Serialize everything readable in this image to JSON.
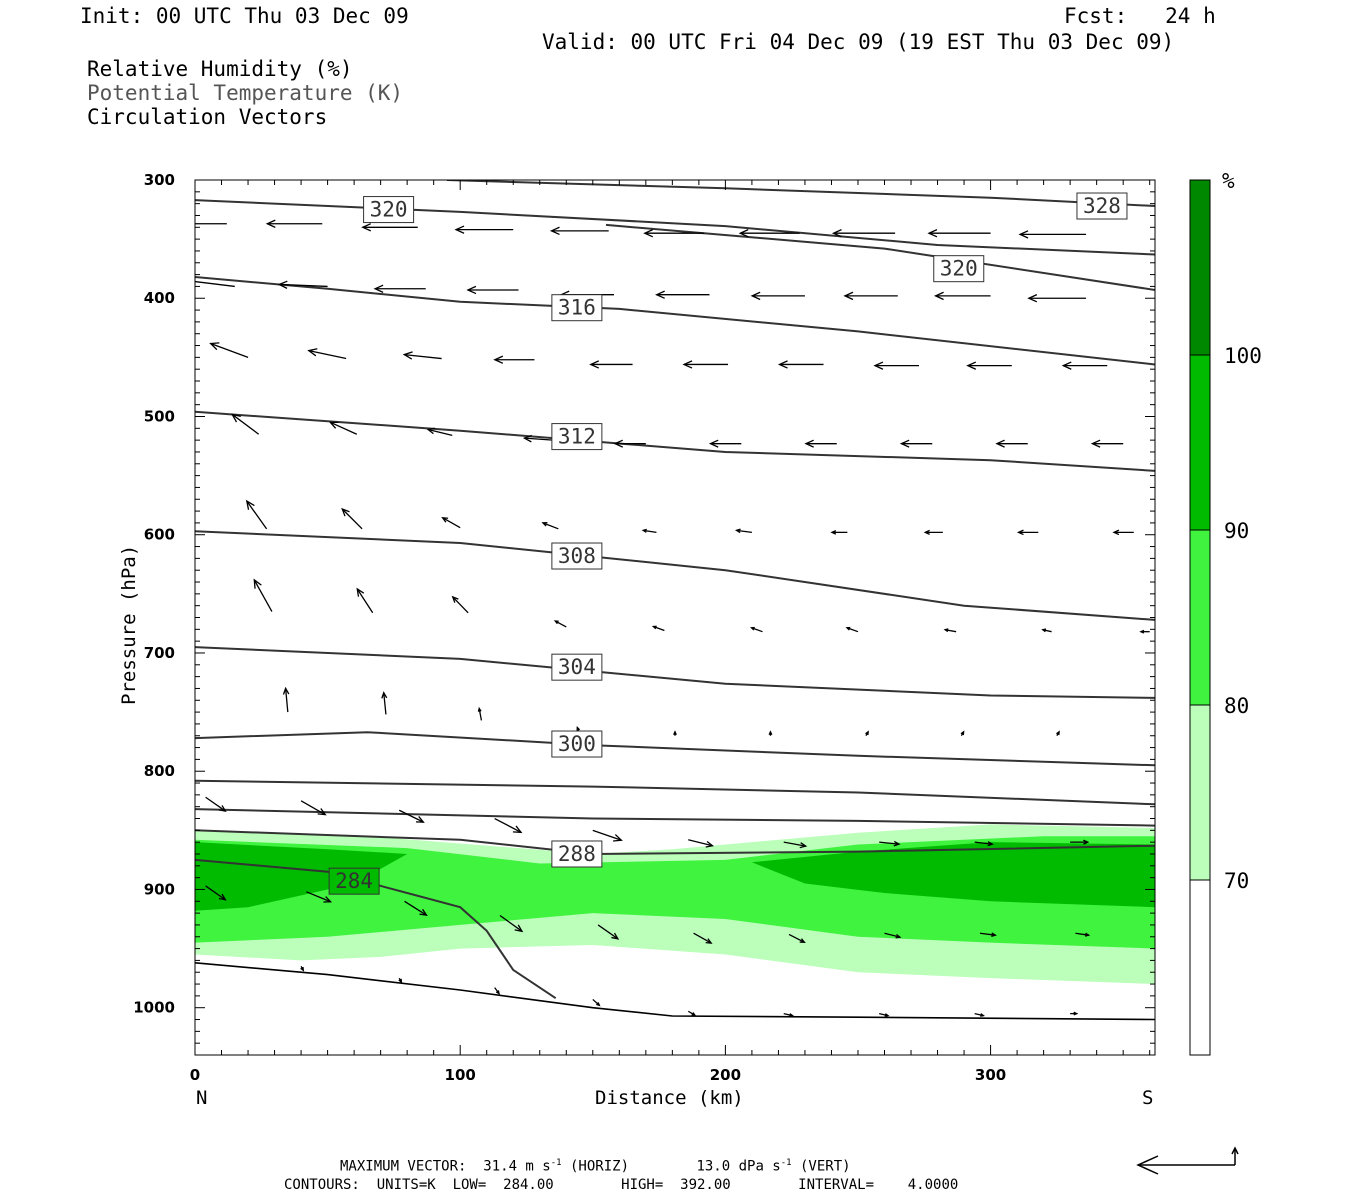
{
  "header": {
    "init": "Init: 00 UTC Thu 03 Dec 09",
    "fcst": "Fcst:   24 h",
    "valid": "Valid: 00 UTC Fri 04 Dec 09 (19 EST Thu 03 Dec 09)"
  },
  "fields": {
    "rh": "Relative Humidity (%)",
    "theta": "Potential Temperature (K)",
    "vectors": "Circulation Vectors"
  },
  "footer": {
    "max_vector_prefix": "MAXIMUM VECTOR:  31.4 m s",
    "max_vector_horiz": " (HORIZ)",
    "max_vector_vert_prefix": "13.0 dPa s",
    "max_vector_vert": " (VERT)",
    "exponent": "-1",
    "contours": "CONTOURS:  UNITS=K  LOW=  284.00        HIGH=  392.00        INTERVAL=    4.0000"
  },
  "colors": {
    "rh70": "#bbffbb",
    "rh80": "#3ff33f",
    "rh90": "#00bb00",
    "rh100": "#008800",
    "contour": "#333333",
    "vector": "#000000"
  },
  "chart_data": {
    "type": "cross-section",
    "xlabel": "Distance (km)",
    "ylabel": "Pressure (hPa)",
    "xlim": [
      0,
      362
    ],
    "ylim": [
      1040,
      300
    ],
    "x_ticks": [
      0,
      100,
      200,
      300
    ],
    "y_ticks": [
      300,
      400,
      500,
      600,
      700,
      800,
      900,
      1000
    ],
    "x_end_labels": {
      "left": "N",
      "right": "S"
    },
    "colorbar": {
      "unit": "%",
      "levels": [
        70,
        80,
        90,
        100
      ],
      "colors": [
        "#ffffff",
        "#bbffbb",
        "#3ff33f",
        "#00bb00",
        "#008800"
      ]
    },
    "rh_regions": [
      {
        "level": 70,
        "upper": [
          [
            0,
            850
          ],
          [
            60,
            854
          ],
          [
            150,
            870
          ],
          [
            180,
            866
          ],
          [
            250,
            852
          ],
          [
            300,
            845
          ],
          [
            362,
            848
          ]
        ],
        "lower": [
          [
            362,
            980
          ],
          [
            300,
            975
          ],
          [
            250,
            970
          ],
          [
            200,
            955
          ],
          [
            150,
            947
          ],
          [
            100,
            950
          ],
          [
            70,
            957
          ],
          [
            40,
            960
          ],
          [
            0,
            955
          ]
        ]
      },
      {
        "level": 80,
        "upper": [
          [
            0,
            858
          ],
          [
            80,
            865
          ],
          [
            130,
            878
          ],
          [
            200,
            875
          ],
          [
            250,
            862
          ],
          [
            320,
            855
          ],
          [
            362,
            855
          ]
        ],
        "lower": [
          [
            362,
            950
          ],
          [
            300,
            945
          ],
          [
            250,
            940
          ],
          [
            200,
            925
          ],
          [
            150,
            920
          ],
          [
            100,
            930
          ],
          [
            50,
            940
          ],
          [
            0,
            945
          ]
        ]
      },
      {
        "level": 90,
        "upper": [
          [
            0,
            860
          ],
          [
            50,
            866
          ],
          [
            80,
            870
          ],
          [
            60,
            895
          ],
          [
            40,
            905
          ],
          [
            20,
            915
          ],
          [
            0,
            918
          ]
        ],
        "lower": null
      },
      {
        "level": 90,
        "upper": [
          [
            210,
            877
          ],
          [
            250,
            868
          ],
          [
            300,
            860
          ],
          [
            362,
            862
          ]
        ],
        "lower": [
          [
            362,
            915
          ],
          [
            300,
            910
          ],
          [
            260,
            903
          ],
          [
            230,
            895
          ]
        ]
      }
    ],
    "theta_contours": [
      {
        "value": 328,
        "points": [
          [
            95,
            300
          ],
          [
            200,
            307
          ],
          [
            300,
            315
          ],
          [
            362,
            322
          ]
        ],
        "label": {
          "x": 342,
          "p": 322
        }
      },
      {
        "value": 320,
        "points": [
          [
            0,
            317
          ],
          [
            100,
            327
          ],
          [
            200,
            339
          ],
          [
            280,
            355
          ],
          [
            362,
            363
          ]
        ],
        "label": {
          "x": 73,
          "p": 325
        }
      },
      {
        "value": 320,
        "points": [
          [
            155,
            338
          ],
          [
            260,
            358
          ],
          [
            362,
            393
          ]
        ],
        "label": {
          "x": 288,
          "p": 375
        }
      },
      {
        "value": 316,
        "points": [
          [
            0,
            382
          ],
          [
            50,
            392
          ],
          [
            100,
            403
          ],
          [
            160,
            409
          ],
          [
            250,
            428
          ],
          [
            362,
            456
          ]
        ],
        "label": {
          "x": 144,
          "p": 408
        }
      },
      {
        "value": 312,
        "points": [
          [
            0,
            496
          ],
          [
            100,
            512
          ],
          [
            200,
            530
          ],
          [
            300,
            537
          ],
          [
            362,
            546
          ]
        ],
        "label": {
          "x": 144,
          "p": 517
        }
      },
      {
        "value": 308,
        "points": [
          [
            0,
            597
          ],
          [
            100,
            607
          ],
          [
            200,
            630
          ],
          [
            290,
            660
          ],
          [
            362,
            672
          ]
        ],
        "label": {
          "x": 144,
          "p": 618
        }
      },
      {
        "value": 304,
        "points": [
          [
            0,
            695
          ],
          [
            100,
            705
          ],
          [
            200,
            726
          ],
          [
            300,
            736
          ],
          [
            362,
            738
          ]
        ],
        "label": {
          "x": 144,
          "p": 712
        }
      },
      {
        "value": 300,
        "points": [
          [
            0,
            772
          ],
          [
            65,
            767
          ],
          [
            150,
            778
          ],
          [
            250,
            787
          ],
          [
            362,
            795
          ]
        ],
        "label": {
          "x": 144,
          "p": 777
        }
      },
      {
        "value": 296,
        "points": [
          [
            0,
            808
          ],
          [
            150,
            813
          ],
          [
            250,
            818
          ],
          [
            362,
            828
          ]
        ],
        "label": null
      },
      {
        "value": 292,
        "points": [
          [
            0,
            832
          ],
          [
            150,
            840
          ],
          [
            250,
            842
          ],
          [
            362,
            846
          ]
        ],
        "label": null
      },
      {
        "value": 288,
        "points": [
          [
            0,
            850
          ],
          [
            100,
            858
          ],
          [
            150,
            870
          ],
          [
            250,
            868
          ],
          [
            362,
            863
          ]
        ],
        "label": {
          "x": 144,
          "p": 870
        }
      },
      {
        "value": 284,
        "points": [
          [
            0,
            875
          ],
          [
            50,
            885
          ],
          [
            100,
            915
          ],
          [
            110,
            935
          ],
          [
            120,
            968
          ],
          [
            136,
            992
          ]
        ],
        "label": {
          "x": 60,
          "p": 893
        }
      }
    ],
    "terrain": [
      [
        0,
        962
      ],
      [
        50,
        972
      ],
      [
        100,
        985
      ],
      [
        150,
        1000
      ],
      [
        180,
        1007
      ],
      [
        250,
        1008
      ],
      [
        362,
        1010
      ]
    ],
    "vectors": [
      {
        "x": 12,
        "p": 337,
        "u": -25,
        "w": 0
      },
      {
        "x": 48,
        "p": 337,
        "u": -25,
        "w": 0
      },
      {
        "x": 84,
        "p": 340,
        "u": -25,
        "w": 0
      },
      {
        "x": 120,
        "p": 342,
        "u": -26,
        "w": 0
      },
      {
        "x": 156,
        "p": 343,
        "u": -26,
        "w": 0
      },
      {
        "x": 192,
        "p": 345,
        "u": -27,
        "w": 0
      },
      {
        "x": 228,
        "p": 345,
        "u": -27,
        "w": 0
      },
      {
        "x": 264,
        "p": 345,
        "u": -28,
        "w": 0
      },
      {
        "x": 300,
        "p": 345,
        "u": -28,
        "w": 0
      },
      {
        "x": 336,
        "p": 346,
        "u": -30,
        "w": 0
      },
      {
        "x": 15,
        "p": 390,
        "u": -22,
        "w": -3
      },
      {
        "x": 50,
        "p": 390,
        "u": -22,
        "w": -1
      },
      {
        "x": 87,
        "p": 392,
        "u": -23,
        "w": 0
      },
      {
        "x": 122,
        "p": 393,
        "u": -23,
        "w": 0
      },
      {
        "x": 158,
        "p": 397,
        "u": -24,
        "w": 0
      },
      {
        "x": 194,
        "p": 397,
        "u": -24,
        "w": 0
      },
      {
        "x": 230,
        "p": 398,
        "u": -24,
        "w": 0
      },
      {
        "x": 265,
        "p": 398,
        "u": -24,
        "w": 0
      },
      {
        "x": 300,
        "p": 398,
        "u": -25,
        "w": 0
      },
      {
        "x": 336,
        "p": 400,
        "u": -26,
        "w": 0
      },
      {
        "x": 20,
        "p": 450,
        "u": -17,
        "w": -7
      },
      {
        "x": 57,
        "p": 451,
        "u": -17,
        "w": -4
      },
      {
        "x": 93,
        "p": 451,
        "u": -17,
        "w": -2
      },
      {
        "x": 128,
        "p": 452,
        "u": -18,
        "w": 0
      },
      {
        "x": 165,
        "p": 456,
        "u": -19,
        "w": 0
      },
      {
        "x": 201,
        "p": 456,
        "u": -20,
        "w": 0
      },
      {
        "x": 237,
        "p": 456,
        "u": -20,
        "w": 0
      },
      {
        "x": 273,
        "p": 457,
        "u": -20,
        "w": 0
      },
      {
        "x": 308,
        "p": 457,
        "u": -20,
        "w": 0
      },
      {
        "x": 344,
        "p": 457,
        "u": -20,
        "w": 0
      },
      {
        "x": 24,
        "p": 515,
        "u": -12,
        "w": -10
      },
      {
        "x": 61,
        "p": 515,
        "u": -12,
        "w": -6
      },
      {
        "x": 97,
        "p": 516,
        "u": -11,
        "w": -3
      },
      {
        "x": 135,
        "p": 520,
        "u": -13,
        "w": -1
      },
      {
        "x": 170,
        "p": 523,
        "u": -14,
        "w": 0
      },
      {
        "x": 206,
        "p": 523,
        "u": -14,
        "w": 0
      },
      {
        "x": 242,
        "p": 523,
        "u": -14,
        "w": 0
      },
      {
        "x": 278,
        "p": 523,
        "u": -14,
        "w": 0
      },
      {
        "x": 314,
        "p": 523,
        "u": -14,
        "w": 0
      },
      {
        "x": 350,
        "p": 523,
        "u": -14,
        "w": 0
      },
      {
        "x": 27,
        "p": 595,
        "u": -9,
        "w": -14
      },
      {
        "x": 63,
        "p": 595,
        "u": -9,
        "w": -10
      },
      {
        "x": 100,
        "p": 594,
        "u": -8,
        "w": -5
      },
      {
        "x": 137,
        "p": 595,
        "u": -7,
        "w": -3
      },
      {
        "x": 174,
        "p": 598,
        "u": -6,
        "w": -1
      },
      {
        "x": 210,
        "p": 598,
        "u": -7,
        "w": -1
      },
      {
        "x": 246,
        "p": 598,
        "u": -7,
        "w": 0
      },
      {
        "x": 282,
        "p": 598,
        "u": -8,
        "w": 0
      },
      {
        "x": 318,
        "p": 598,
        "u": -9,
        "w": 0
      },
      {
        "x": 354,
        "p": 598,
        "u": -9,
        "w": 0
      },
      {
        "x": 29,
        "p": 665,
        "u": -8,
        "w": -16
      },
      {
        "x": 67,
        "p": 666,
        "u": -7,
        "w": -12
      },
      {
        "x": 103,
        "p": 666,
        "u": -7,
        "w": -8
      },
      {
        "x": 140,
        "p": 678,
        "u": -5,
        "w": -3
      },
      {
        "x": 177,
        "p": 681,
        "u": -5,
        "w": -2
      },
      {
        "x": 214,
        "p": 682,
        "u": -5,
        "w": -2
      },
      {
        "x": 250,
        "p": 682,
        "u": -5,
        "w": -2
      },
      {
        "x": 287,
        "p": 682,
        "u": -5,
        "w": -1
      },
      {
        "x": 323,
        "p": 682,
        "u": -4,
        "w": -1
      },
      {
        "x": 360,
        "p": 682,
        "u": -4,
        "w": 0
      },
      {
        "x": 35,
        "p": 750,
        "u": -1,
        "w": -12
      },
      {
        "x": 72,
        "p": 752,
        "u": -1,
        "w": -11
      },
      {
        "x": 108,
        "p": 757,
        "u": -1,
        "w": -6
      },
      {
        "x": 145,
        "p": 768,
        "u": -1,
        "w": -3
      },
      {
        "x": 181,
        "p": 770,
        "u": 0,
        "w": -2
      },
      {
        "x": 217,
        "p": 770,
        "u": 0,
        "w": -2
      },
      {
        "x": 253,
        "p": 770,
        "u": 1,
        "w": -2
      },
      {
        "x": 289,
        "p": 770,
        "u": 1,
        "w": -2
      },
      {
        "x": 325,
        "p": 770,
        "u": 1,
        "w": -2
      },
      {
        "x": 4,
        "p": 822,
        "u": 9,
        "w": 7
      },
      {
        "x": 40,
        "p": 825,
        "u": 11,
        "w": 7
      },
      {
        "x": 77,
        "p": 833,
        "u": 11,
        "w": 6
      },
      {
        "x": 113,
        "p": 840,
        "u": 12,
        "w": 7
      },
      {
        "x": 150,
        "p": 850,
        "u": 13,
        "w": 5
      },
      {
        "x": 186,
        "p": 858,
        "u": 11,
        "w": 3
      },
      {
        "x": 222,
        "p": 860,
        "u": 10,
        "w": 2
      },
      {
        "x": 258,
        "p": 860,
        "u": 9,
        "w": 1
      },
      {
        "x": 294,
        "p": 860,
        "u": 8,
        "w": 1
      },
      {
        "x": 330,
        "p": 860,
        "u": 8,
        "w": 0
      },
      {
        "x": 4,
        "p": 897,
        "u": 9,
        "w": 7
      },
      {
        "x": 42,
        "p": 902,
        "u": 11,
        "w": 5
      },
      {
        "x": 79,
        "p": 910,
        "u": 10,
        "w": 7
      },
      {
        "x": 115,
        "p": 922,
        "u": 10,
        "w": 8
      },
      {
        "x": 152,
        "p": 930,
        "u": 9,
        "w": 7
      },
      {
        "x": 188,
        "p": 937,
        "u": 8,
        "w": 5
      },
      {
        "x": 224,
        "p": 938,
        "u": 7,
        "w": 4
      },
      {
        "x": 260,
        "p": 937,
        "u": 7,
        "w": 2
      },
      {
        "x": 296,
        "p": 937,
        "u": 7,
        "w": 1
      },
      {
        "x": 332,
        "p": 937,
        "u": 6,
        "w": 1
      },
      {
        "x": 40,
        "p": 965,
        "u": 1,
        "w": 2
      },
      {
        "x": 77,
        "p": 975,
        "u": 1,
        "w": 2
      },
      {
        "x": 113,
        "p": 983,
        "u": 2,
        "w": 3
      },
      {
        "x": 150,
        "p": 993,
        "u": 3,
        "w": 3
      },
      {
        "x": 186,
        "p": 1003,
        "u": 3,
        "w": 2
      },
      {
        "x": 222,
        "p": 1005,
        "u": 4,
        "w": 1
      },
      {
        "x": 258,
        "p": 1005,
        "u": 4,
        "w": 1
      },
      {
        "x": 294,
        "p": 1005,
        "u": 4,
        "w": 1
      },
      {
        "x": 330,
        "p": 1005,
        "u": 3,
        "w": 0
      }
    ]
  }
}
